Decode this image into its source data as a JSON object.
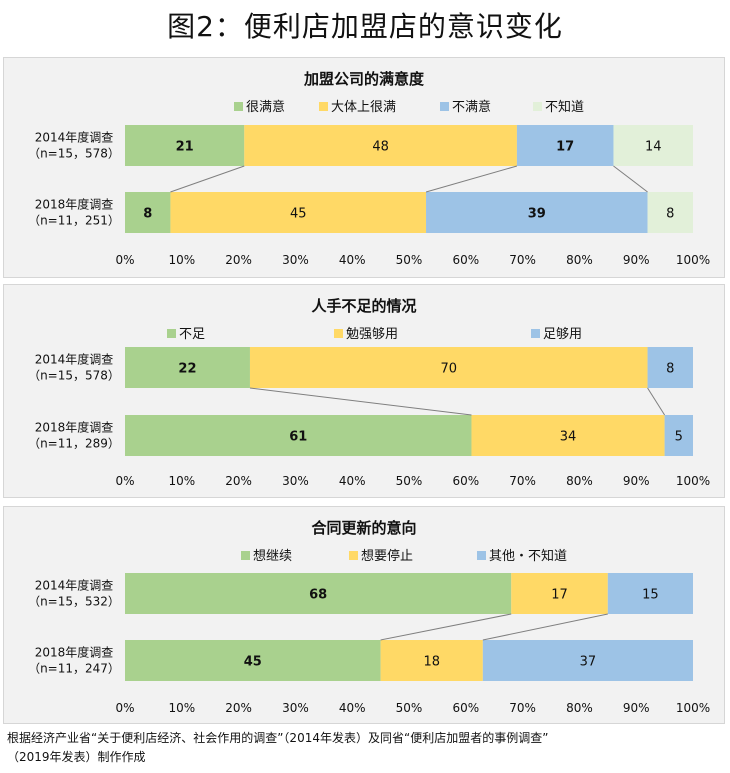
{
  "page": {
    "title": "图2：便利店加盟店的意识变化"
  },
  "source_note": {
    "line1": "根据经济产业省“关于便利店经济、社会作用的调查”（2014年发表）及同省“便利店加盟者的事例调查”",
    "line2": "（2019年发表）制作作成"
  },
  "chart_data": [
    {
      "type": "bar",
      "orientation": "horizontal",
      "stacked": true,
      "title": "加盟公司的满意度",
      "categories": [
        {
          "label": "2014年度调查",
          "sublabel": "（n=15，578）"
        },
        {
          "label": "2018年度调查",
          "sublabel": "（n=11，251）"
        }
      ],
      "series": [
        {
          "name": "很满意",
          "color": "#a9d18e",
          "values": [
            21,
            8
          ],
          "label_bold": true
        },
        {
          "name": "大体上很满",
          "color": "#ffd966",
          "values": [
            48,
            45
          ],
          "label_bold": false
        },
        {
          "name": "不满意",
          "color": "#9dc3e6",
          "values": [
            17,
            39
          ],
          "label_bold": true
        },
        {
          "name": "不知道",
          "color": "#e2f0d9",
          "values": [
            14,
            8
          ],
          "label_bold": false
        }
      ],
      "xlim": [
        0,
        100
      ],
      "xticks": [
        "0%",
        "10%",
        "20%",
        "30%",
        "40%",
        "50%",
        "60%",
        "70%",
        "80%",
        "90%",
        "100%"
      ],
      "series_lines": true,
      "legend_position": "top",
      "grid": false
    },
    {
      "type": "bar",
      "orientation": "horizontal",
      "stacked": true,
      "title": "人手不足的情况",
      "categories": [
        {
          "label": "2014年度调查",
          "sublabel": "（n=15，578）"
        },
        {
          "label": "2018年度调查",
          "sublabel": "（n=11，289）"
        }
      ],
      "series": [
        {
          "name": "不足",
          "color": "#a9d18e",
          "values": [
            22,
            61
          ],
          "label_bold": true
        },
        {
          "name": "勉强够用",
          "color": "#ffd966",
          "values": [
            70,
            34
          ],
          "label_bold": false
        },
        {
          "name": "足够用",
          "color": "#9dc3e6",
          "values": [
            8,
            5
          ],
          "label_bold": false
        }
      ],
      "xlim": [
        0,
        100
      ],
      "xticks": [
        "0%",
        "10%",
        "20%",
        "30%",
        "40%",
        "50%",
        "60%",
        "70%",
        "80%",
        "90%",
        "100%"
      ],
      "series_lines": true,
      "legend_position": "top",
      "grid": false
    },
    {
      "type": "bar",
      "orientation": "horizontal",
      "stacked": true,
      "title": "合同更新的意向",
      "categories": [
        {
          "label": "2014年度调查",
          "sublabel": "（n=15，532）"
        },
        {
          "label": "2018年度调查",
          "sublabel": "（n=11，247）"
        }
      ],
      "series": [
        {
          "name": "想继续",
          "color": "#a9d18e",
          "values": [
            68,
            45
          ],
          "label_bold": true
        },
        {
          "name": "想要停止",
          "color": "#ffd966",
          "values": [
            17,
            18
          ],
          "label_bold": false
        },
        {
          "name": "其他・不知道",
          "color": "#9dc3e6",
          "values": [
            15,
            37
          ],
          "label_bold": false
        }
      ],
      "xlim": [
        0,
        100
      ],
      "xticks": [
        "0%",
        "10%",
        "20%",
        "30%",
        "40%",
        "50%",
        "60%",
        "70%",
        "80%",
        "90%",
        "100%"
      ],
      "series_lines": true,
      "legend_position": "top",
      "grid": false
    }
  ]
}
